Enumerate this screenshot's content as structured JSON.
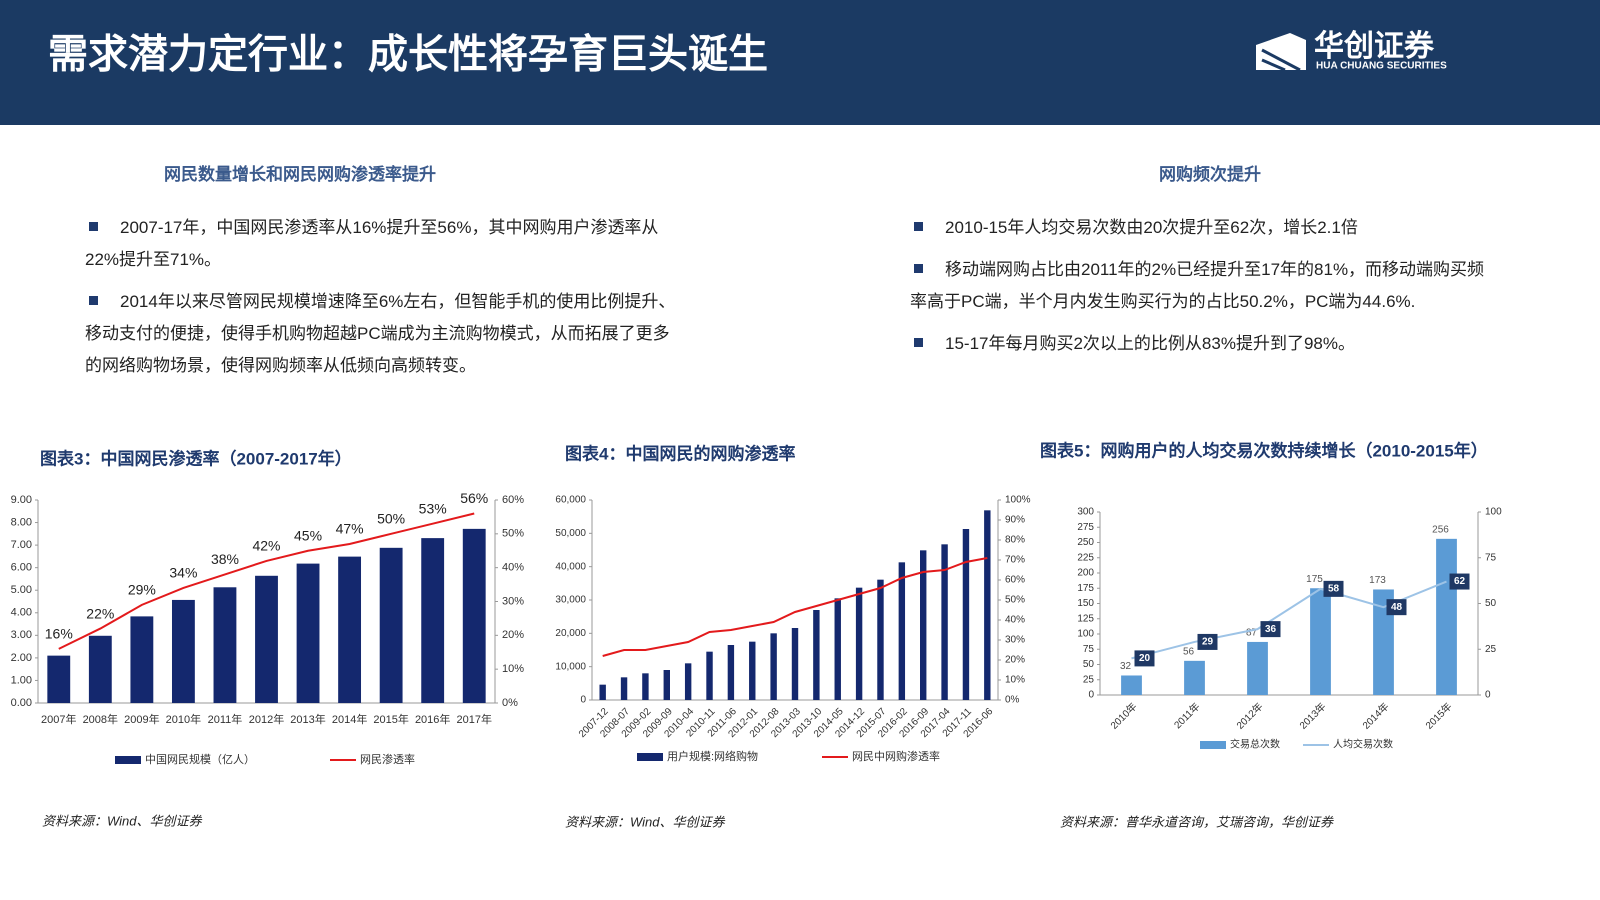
{
  "header": {
    "title": "需求潜力定行业：成长性将孕育巨头诞生",
    "logo_cn": "华创证券",
    "logo_en": "HUA CHUANG SECURITIES"
  },
  "sections": [
    {
      "heading": "网民数量增长和网民网购渗透率提升",
      "bullets": [
        "2007-17年，中国网民渗透率从16%提升至56%，其中网购用户渗透率从22%提升至71%。",
        "2014年以来尽管网民规模增速降至6%左右，但智能手机的使用比例提升、移动支付的便捷，使得手机购物超越PC端成为主流购物模式，从而拓展了更多的网络购物场景，使得网购频率从低频向高频转变。"
      ]
    },
    {
      "heading": "网购频次提升",
      "bullets": [
        "2010-15年人均交易次数由20次提升至62次，增长2.1倍",
        "移动端网购占比由2011年的2%已经提升至17年的81%，而移动端购买频率高于PC端，半个月内发生购买行为的占比50.2%，PC端为44.6%.",
        "15-17年每月购买2次以上的比例从83%提升到了98%。"
      ]
    }
  ],
  "chart_data": [
    {
      "type": "combo",
      "title": "图表3：中国网民渗透率（2007-2017年）",
      "source": "资料来源：Wind、华创证券",
      "categories": [
        "2007年",
        "2008年",
        "2009年",
        "2010年",
        "2011年",
        "2012年",
        "2013年",
        "2014年",
        "2015年",
        "2016年",
        "2017年"
      ],
      "series": [
        {
          "name": "中国网民规模（亿人）",
          "color": "#14286e",
          "values": [
            2.1,
            2.98,
            3.84,
            4.57,
            5.13,
            5.64,
            6.18,
            6.49,
            6.88,
            7.31,
            7.72
          ]
        },
        {
          "name": "网民渗透率",
          "color": "#e31a1c",
          "axis": "y2",
          "values": [
            16,
            22,
            29,
            34,
            38,
            42,
            45,
            47,
            50,
            53,
            56
          ],
          "value_labels": [
            "16%",
            "22%",
            "29%",
            "34%",
            "38%",
            "42%",
            "45%",
            "47%",
            "50%",
            "53%",
            "56%"
          ]
        }
      ],
      "ylim": [
        0,
        9
      ],
      "yticks": [
        {
          "value": 0,
          "label": "0.00"
        },
        {
          "value": 1,
          "label": "1.00"
        },
        {
          "value": 2,
          "label": "2.00"
        },
        {
          "value": 3,
          "label": "3.00"
        },
        {
          "value": 4,
          "label": "4.00"
        },
        {
          "value": 5,
          "label": "5.00"
        },
        {
          "value": 6,
          "label": "6.00"
        },
        {
          "value": 7,
          "label": "7.00"
        },
        {
          "value": 8,
          "label": "8.00"
        },
        {
          "value": 9,
          "label": "9.00"
        }
      ],
      "y2lim": [
        0,
        60
      ],
      "y2ticks": [
        {
          "value": 0,
          "label": "0%"
        },
        {
          "value": 10,
          "label": "10%"
        },
        {
          "value": 20,
          "label": "20%"
        },
        {
          "value": 30,
          "label": "30%"
        },
        {
          "value": 40,
          "label": "40%"
        },
        {
          "value": 50,
          "label": "50%"
        },
        {
          "value": 60,
          "label": "60%"
        }
      ]
    },
    {
      "type": "combo",
      "title": "图表4：中国网民的网购渗透率",
      "source": "资料来源：Wind、华创证券",
      "categories": [
        "2007-12",
        "2008-07",
        "2009-02",
        "2009-09",
        "2010-04",
        "2010-11",
        "2011-06",
        "2012-01",
        "2012-08",
        "2013-03",
        "2013-10",
        "2014-05",
        "2014-12",
        "2015-07",
        "2016-02",
        "2016-09",
        "2017-04",
        "2017-11",
        "2016-06"
      ],
      "series": [
        {
          "name": "用户规模:网络购物",
          "color": "#14286e",
          "values": [
            4600,
            6800,
            8000,
            9000,
            11000,
            14500,
            16500,
            17500,
            20000,
            21600,
            27000,
            30500,
            33700,
            36100,
            41300,
            44900,
            46700,
            51300,
            56900
          ]
        },
        {
          "name": "网民中网购渗透率",
          "color": "#e31a1c",
          "axis": "y2",
          "values": [
            22,
            25,
            25,
            27,
            29,
            34,
            35,
            37,
            39,
            44,
            47,
            50,
            53,
            56,
            61,
            64,
            65,
            69,
            71
          ]
        }
      ],
      "ylim": [
        0,
        60000
      ],
      "yticks": [
        0,
        {
          "value": 10000,
          "label": "10,000"
        },
        {
          "value": 20000,
          "label": "20,000"
        },
        {
          "value": 30000,
          "label": "30,000"
        },
        {
          "value": 40000,
          "label": "40,000"
        },
        {
          "value": 50000,
          "label": "50,000"
        },
        {
          "value": 60000,
          "label": "60,000"
        }
      ],
      "y2lim": [
        0,
        100
      ],
      "y2ticks": [
        {
          "value": 0,
          "label": "0%"
        },
        {
          "value": 10,
          "label": "10%"
        },
        {
          "value": 20,
          "label": "20%"
        },
        {
          "value": 30,
          "label": "30%"
        },
        {
          "value": 40,
          "label": "40%"
        },
        {
          "value": 50,
          "label": "50%"
        },
        {
          "value": 60,
          "label": "60%"
        },
        {
          "value": 70,
          "label": "70%"
        },
        {
          "value": 80,
          "label": "80%"
        },
        {
          "value": 90,
          "label": "90%"
        },
        {
          "value": 100,
          "label": "100%"
        }
      ]
    },
    {
      "type": "combo",
      "title": "图表5：网购用户的人均交易次数持续增长（2010-2015年）",
      "source": "资料来源：普华永道咨询，艾瑞咨询，华创证券",
      "categories": [
        "2010年",
        "2011年",
        "2012年",
        "2013年",
        "2014年",
        "2015年"
      ],
      "data_labels": true,
      "series": [
        {
          "name": "交易总次数",
          "color": "#5b9bd5",
          "values": [
            32,
            56,
            87,
            175,
            173,
            256
          ]
        },
        {
          "name": "人均交易次数",
          "color": "#9dc3e6",
          "axis": "y2",
          "values": [
            20,
            29,
            36,
            58,
            48,
            62
          ]
        }
      ],
      "ylim": [
        0,
        300
      ],
      "yticks": [
        0,
        25,
        50,
        75,
        100,
        125,
        150,
        175,
        200,
        225,
        250,
        275,
        300
      ],
      "y2lim": [
        0,
        100
      ],
      "y2ticks": [
        0,
        25,
        50,
        75,
        100
      ]
    }
  ]
}
